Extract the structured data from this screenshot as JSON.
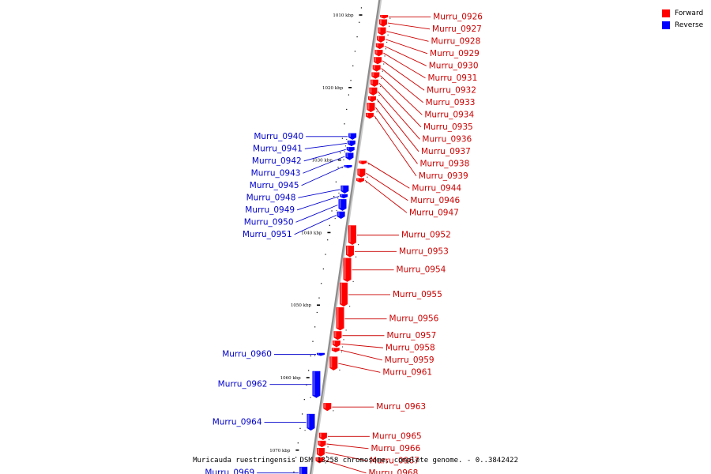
{
  "legend": {
    "forward_label": "Forward",
    "reverse_label": "Reverse",
    "forward_color": "#ff0000",
    "reverse_color": "#0000ff"
  },
  "caption": "Muricauda ruestringensis DSM 13258 chromosome, complete genome. - 0..3842422",
  "colors": {
    "backbone": "#8c8c8c",
    "forward": "#ff0000",
    "reverse": "#0000ff",
    "forward_label": "#cc0000",
    "reverse_label": "#0000cc"
  },
  "ticks": [
    {
      "label": "1010 kbp",
      "kbp": 1010
    },
    {
      "label": "1020 kbp",
      "kbp": 1020
    },
    {
      "label": "1030 kbp",
      "kbp": 1030
    },
    {
      "label": "1040 kbp",
      "kbp": 1040
    },
    {
      "label": "1050 kbp",
      "kbp": 1050
    },
    {
      "label": "1060 kbp",
      "kbp": 1060
    },
    {
      "label": "1070 kbp",
      "kbp": 1070
    }
  ],
  "genes": [
    {
      "name": "Murru_0926",
      "strand": "forward",
      "start_kbp": 1010.0,
      "end_kbp": 1010.5
    },
    {
      "name": "Murru_0927",
      "strand": "forward",
      "start_kbp": 1010.6,
      "end_kbp": 1011.6
    },
    {
      "name": "Murru_0928",
      "strand": "forward",
      "start_kbp": 1011.7,
      "end_kbp": 1012.8
    },
    {
      "name": "Murru_0929",
      "strand": "forward",
      "start_kbp": 1012.9,
      "end_kbp": 1013.8
    },
    {
      "name": "Murru_0930",
      "strand": "forward",
      "start_kbp": 1013.9,
      "end_kbp": 1014.7
    },
    {
      "name": "Murru_0931",
      "strand": "forward",
      "start_kbp": 1014.8,
      "end_kbp": 1015.7
    },
    {
      "name": "Murru_0932",
      "strand": "forward",
      "start_kbp": 1015.8,
      "end_kbp": 1016.8
    },
    {
      "name": "Murru_0933",
      "strand": "forward",
      "start_kbp": 1016.9,
      "end_kbp": 1017.8
    },
    {
      "name": "Murru_0934",
      "strand": "forward",
      "start_kbp": 1017.9,
      "end_kbp": 1018.8
    },
    {
      "name": "Murru_0935",
      "strand": "forward",
      "start_kbp": 1018.9,
      "end_kbp": 1019.9
    },
    {
      "name": "Murru_0936",
      "strand": "forward",
      "start_kbp": 1020.0,
      "end_kbp": 1021.1
    },
    {
      "name": "Murru_0937",
      "strand": "forward",
      "start_kbp": 1021.2,
      "end_kbp": 1022.0
    },
    {
      "name": "Murru_0938",
      "strand": "forward",
      "start_kbp": 1022.1,
      "end_kbp": 1023.4
    },
    {
      "name": "Murru_0939",
      "strand": "forward",
      "start_kbp": 1023.5,
      "end_kbp": 1024.3
    },
    {
      "name": "Murru_0940",
      "strand": "reverse",
      "start_kbp": 1026.3,
      "end_kbp": 1027.2
    },
    {
      "name": "Murru_0941",
      "strand": "reverse",
      "start_kbp": 1027.3,
      "end_kbp": 1028.1
    },
    {
      "name": "Murru_0942",
      "strand": "reverse",
      "start_kbp": 1028.2,
      "end_kbp": 1028.9
    },
    {
      "name": "Murru_0943",
      "strand": "reverse",
      "start_kbp": 1029.0,
      "end_kbp": 1030.0
    },
    {
      "name": "Murru_0944",
      "strand": "forward",
      "start_kbp": 1030.1,
      "end_kbp": 1030.6
    },
    {
      "name": "Murru_0945",
      "strand": "reverse",
      "start_kbp": 1030.7,
      "end_kbp": 1031.1
    },
    {
      "name": "Murru_0946",
      "strand": "forward",
      "start_kbp": 1031.2,
      "end_kbp": 1032.4
    },
    {
      "name": "Murru_0947",
      "strand": "forward",
      "start_kbp": 1032.5,
      "end_kbp": 1033.1
    },
    {
      "name": "Murru_0948",
      "strand": "reverse",
      "start_kbp": 1033.5,
      "end_kbp": 1034.6
    },
    {
      "name": "Murru_0949",
      "strand": "reverse",
      "start_kbp": 1034.7,
      "end_kbp": 1035.3
    },
    {
      "name": "Murru_0950",
      "strand": "reverse",
      "start_kbp": 1035.4,
      "end_kbp": 1037.0
    },
    {
      "name": "Murru_0951",
      "strand": "reverse",
      "start_kbp": 1037.1,
      "end_kbp": 1038.1
    },
    {
      "name": "Murru_0952",
      "strand": "forward",
      "start_kbp": 1039.0,
      "end_kbp": 1041.7
    },
    {
      "name": "Murru_0953",
      "strand": "forward",
      "start_kbp": 1041.8,
      "end_kbp": 1043.4
    },
    {
      "name": "Murru_0954",
      "strand": "forward",
      "start_kbp": 1043.5,
      "end_kbp": 1046.8
    },
    {
      "name": "Murru_0955",
      "strand": "forward",
      "start_kbp": 1046.9,
      "end_kbp": 1050.2
    },
    {
      "name": "Murru_0956",
      "strand": "forward",
      "start_kbp": 1050.3,
      "end_kbp": 1053.5
    },
    {
      "name": "Murru_0957",
      "strand": "forward",
      "start_kbp": 1053.6,
      "end_kbp": 1054.8
    },
    {
      "name": "Murru_0958",
      "strand": "forward",
      "start_kbp": 1054.9,
      "end_kbp": 1055.8
    },
    {
      "name": "Murru_0959",
      "strand": "forward",
      "start_kbp": 1055.9,
      "end_kbp": 1056.5
    },
    {
      "name": "Murru_0960",
      "strand": "reverse",
      "start_kbp": 1056.6,
      "end_kbp": 1057.0
    },
    {
      "name": "Murru_0961",
      "strand": "forward",
      "start_kbp": 1057.1,
      "end_kbp": 1059.0
    },
    {
      "name": "Murru_0962",
      "strand": "reverse",
      "start_kbp": 1059.1,
      "end_kbp": 1062.8
    },
    {
      "name": "Murru_0963",
      "strand": "forward",
      "start_kbp": 1063.5,
      "end_kbp": 1064.6
    },
    {
      "name": "Murru_0964",
      "strand": "reverse",
      "start_kbp": 1065.0,
      "end_kbp": 1067.3
    },
    {
      "name": "Murru_0965",
      "strand": "forward",
      "start_kbp": 1067.6,
      "end_kbp": 1068.6
    },
    {
      "name": "Murru_0966",
      "strand": "forward",
      "start_kbp": 1068.7,
      "end_kbp": 1069.6
    },
    {
      "name": "Murru_0967",
      "strand": "forward",
      "start_kbp": 1069.7,
      "end_kbp": 1070.9
    },
    {
      "name": "Murru_0968",
      "strand": "forward",
      "start_kbp": 1071.0,
      "end_kbp": 1071.8
    },
    {
      "name": "Murru_0969",
      "strand": "reverse",
      "start_kbp": 1072.3,
      "end_kbp": 1074.0
    }
  ]
}
